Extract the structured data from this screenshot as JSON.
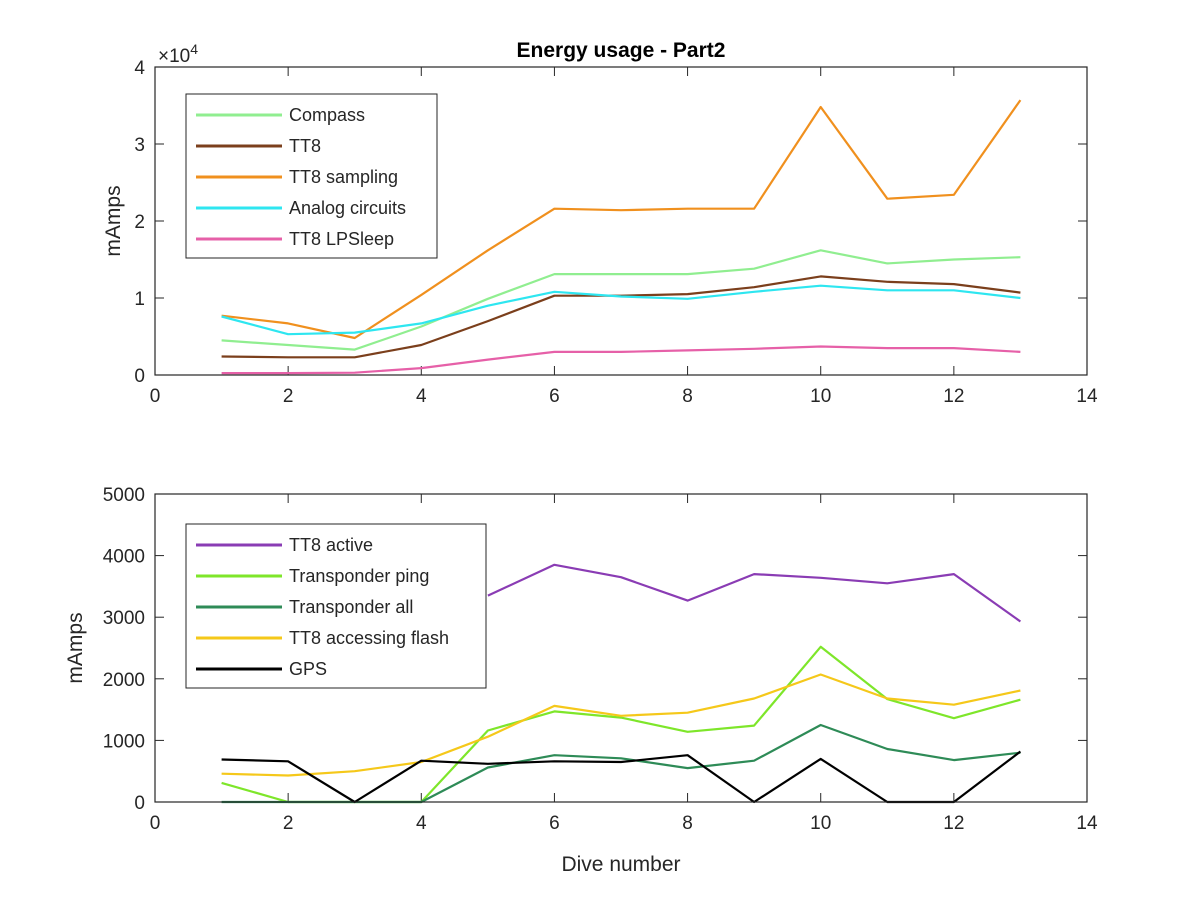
{
  "chart_data": [
    {
      "type": "line",
      "title": "Energy usage - Part2",
      "xlabel": "",
      "ylabel": "mAmps",
      "xlim": [
        0,
        14
      ],
      "ylim": [
        0,
        40000
      ],
      "y_exponent_label": "×10",
      "y_exponent_power": "4",
      "x_ticks": [
        0,
        2,
        4,
        6,
        8,
        10,
        12,
        14
      ],
      "y_ticks": [
        0,
        10000,
        20000,
        30000,
        40000
      ],
      "y_tick_labels": [
        "0",
        "1",
        "2",
        "3",
        "4"
      ],
      "grid": false,
      "legend_position": "top-left",
      "x": [
        1,
        2,
        3,
        4,
        5,
        6,
        7,
        8,
        9,
        10,
        11,
        12,
        13
      ],
      "series": [
        {
          "name": "Compass",
          "color": "#90ee90",
          "values": [
            4500,
            3900,
            3300,
            6300,
            9900,
            13100,
            13100,
            13100,
            13800,
            16200,
            14500,
            15000,
            15300
          ]
        },
        {
          "name": "TT8",
          "color": "#7b3f1c",
          "values": [
            2400,
            2300,
            2300,
            3900,
            7000,
            10300,
            10300,
            10500,
            11400,
            12800,
            12100,
            11800,
            10700
          ]
        },
        {
          "name": "TT8 sampling",
          "color": "#f0901e",
          "values": [
            7700,
            6700,
            4800,
            10400,
            16200,
            21600,
            21400,
            21600,
            21600,
            34800,
            22900,
            23400,
            35700
          ]
        },
        {
          "name": "Analog circuits",
          "color": "#2ee6f0",
          "values": [
            7600,
            5300,
            5500,
            6700,
            9000,
            10800,
            10200,
            9900,
            10800,
            11600,
            11000,
            11000,
            10000
          ]
        },
        {
          "name": "TT8 LPSleep",
          "color": "#e660a8",
          "values": [
            250,
            250,
            300,
            900,
            2000,
            3000,
            3000,
            3200,
            3400,
            3700,
            3500,
            3500,
            3000
          ]
        }
      ]
    },
    {
      "type": "line",
      "title": "",
      "xlabel": "Dive number",
      "ylabel": "mAmps",
      "xlim": [
        0,
        14
      ],
      "ylim": [
        0,
        5000
      ],
      "x_ticks": [
        0,
        2,
        4,
        6,
        8,
        10,
        12,
        14
      ],
      "y_ticks": [
        0,
        1000,
        2000,
        3000,
        4000,
        5000
      ],
      "y_tick_labels": [
        "0",
        "1000",
        "2000",
        "3000",
        "4000",
        "5000"
      ],
      "grid": false,
      "legend_position": "top-left",
      "x": [
        1,
        2,
        3,
        4,
        5,
        6,
        7,
        8,
        9,
        10,
        11,
        12,
        13
      ],
      "series": [
        {
          "name": "TT8 active",
          "color": "#8a3cb4",
          "values": [
            null,
            null,
            null,
            null,
            3350,
            3850,
            3650,
            3270,
            3700,
            3640,
            3550,
            3700,
            2930
          ]
        },
        {
          "name": "Transponder ping",
          "color": "#7ee62a",
          "values": [
            310,
            0,
            0,
            0,
            1160,
            1470,
            1370,
            1140,
            1240,
            2520,
            1670,
            1360,
            1660
          ]
        },
        {
          "name": "Transponder all",
          "color": "#2e8b57",
          "values": [
            0,
            0,
            0,
            0,
            560,
            760,
            710,
            550,
            670,
            1250,
            860,
            680,
            800
          ]
        },
        {
          "name": "TT8 accessing flash",
          "color": "#f5c81a",
          "values": [
            460,
            430,
            500,
            650,
            1060,
            1560,
            1400,
            1450,
            1680,
            2070,
            1680,
            1580,
            1810
          ]
        },
        {
          "name": "GPS",
          "color": "#000000",
          "values": [
            690,
            660,
            0,
            670,
            620,
            660,
            650,
            760,
            0,
            700,
            0,
            0,
            820
          ]
        }
      ]
    }
  ]
}
